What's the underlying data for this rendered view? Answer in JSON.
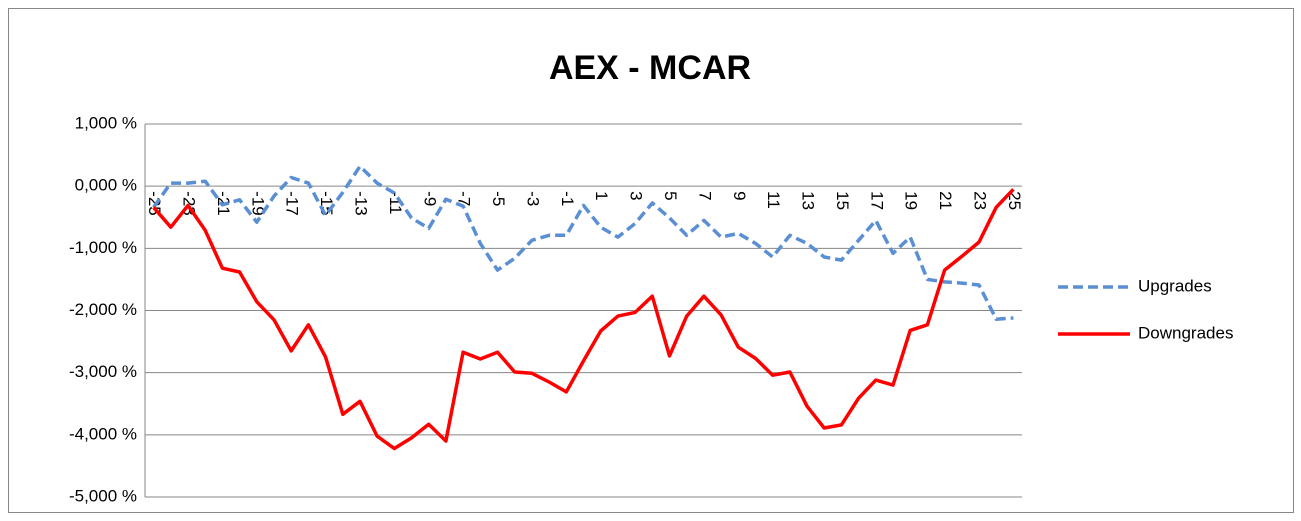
{
  "chart_data": {
    "type": "line",
    "title": "AEX - MCAR",
    "categories": [
      -25,
      null,
      -23,
      null,
      -21,
      null,
      -19,
      null,
      -17,
      null,
      -15,
      null,
      -13,
      null,
      -11,
      null,
      -9,
      null,
      -7,
      null,
      -5,
      null,
      -3,
      null,
      -1,
      null,
      1,
      null,
      3,
      null,
      5,
      null,
      7,
      null,
      9,
      null,
      11,
      null,
      13,
      null,
      15,
      null,
      17,
      null,
      19,
      null,
      21,
      null,
      23,
      null,
      25
    ],
    "series": [
      {
        "name": "Upgrades",
        "color": "#5b8fd4",
        "dashed": true,
        "values": [
          -0.34,
          0.05,
          0.05,
          0.08,
          -0.3,
          -0.22,
          -0.58,
          -0.16,
          0.14,
          0.05,
          -0.47,
          -0.1,
          0.32,
          0.05,
          -0.11,
          -0.51,
          -0.68,
          -0.21,
          -0.32,
          -0.92,
          -1.35,
          -1.16,
          -0.87,
          -0.79,
          -0.79,
          -0.31,
          -0.66,
          -0.82,
          -0.6,
          -0.27,
          -0.51,
          -0.79,
          -0.55,
          -0.82,
          -0.76,
          -0.92,
          -1.14,
          -0.79,
          -0.92,
          -1.14,
          -1.19,
          -0.87,
          -0.55,
          -1.08,
          -0.82,
          -1.5,
          -1.54,
          -1.56,
          -1.59,
          -2.14,
          -2.12
        ]
      },
      {
        "name": "Downgrades",
        "color": "#ff0000",
        "dashed": false,
        "values": [
          -0.34,
          -0.66,
          -0.31,
          -0.71,
          -1.32,
          -1.38,
          -1.86,
          -2.15,
          -2.65,
          -2.23,
          -2.75,
          -3.67,
          -3.46,
          -4.02,
          -4.22,
          -4.05,
          -3.83,
          -4.1,
          -2.67,
          -2.78,
          -2.67,
          -2.99,
          -3.01,
          -3.15,
          -3.31,
          -2.81,
          -2.33,
          -2.09,
          -2.03,
          -1.77,
          -2.73,
          -2.09,
          -1.77,
          -2.07,
          -2.59,
          -2.77,
          -3.04,
          -2.99,
          -3.54,
          -3.89,
          -3.84,
          -3.41,
          -3.12,
          -3.2,
          -2.32,
          -2.23,
          -1.35,
          -1.13,
          -0.9,
          -0.34,
          -0.05
        ]
      }
    ],
    "ylim": [
      -5,
      1
    ],
    "yticks": [
      {
        "value": -5,
        "label": "-5,000 %"
      },
      {
        "value": -4,
        "label": "-4,000 %"
      },
      {
        "value": -3,
        "label": "-3,000 %"
      },
      {
        "value": -2,
        "label": "-2,000 %"
      },
      {
        "value": -1,
        "label": "-1,000 %"
      },
      {
        "value": 0,
        "label": "0,000 %"
      },
      {
        "value": 1,
        "label": "1,000 %"
      }
    ],
    "grid": true,
    "legend": "right"
  }
}
